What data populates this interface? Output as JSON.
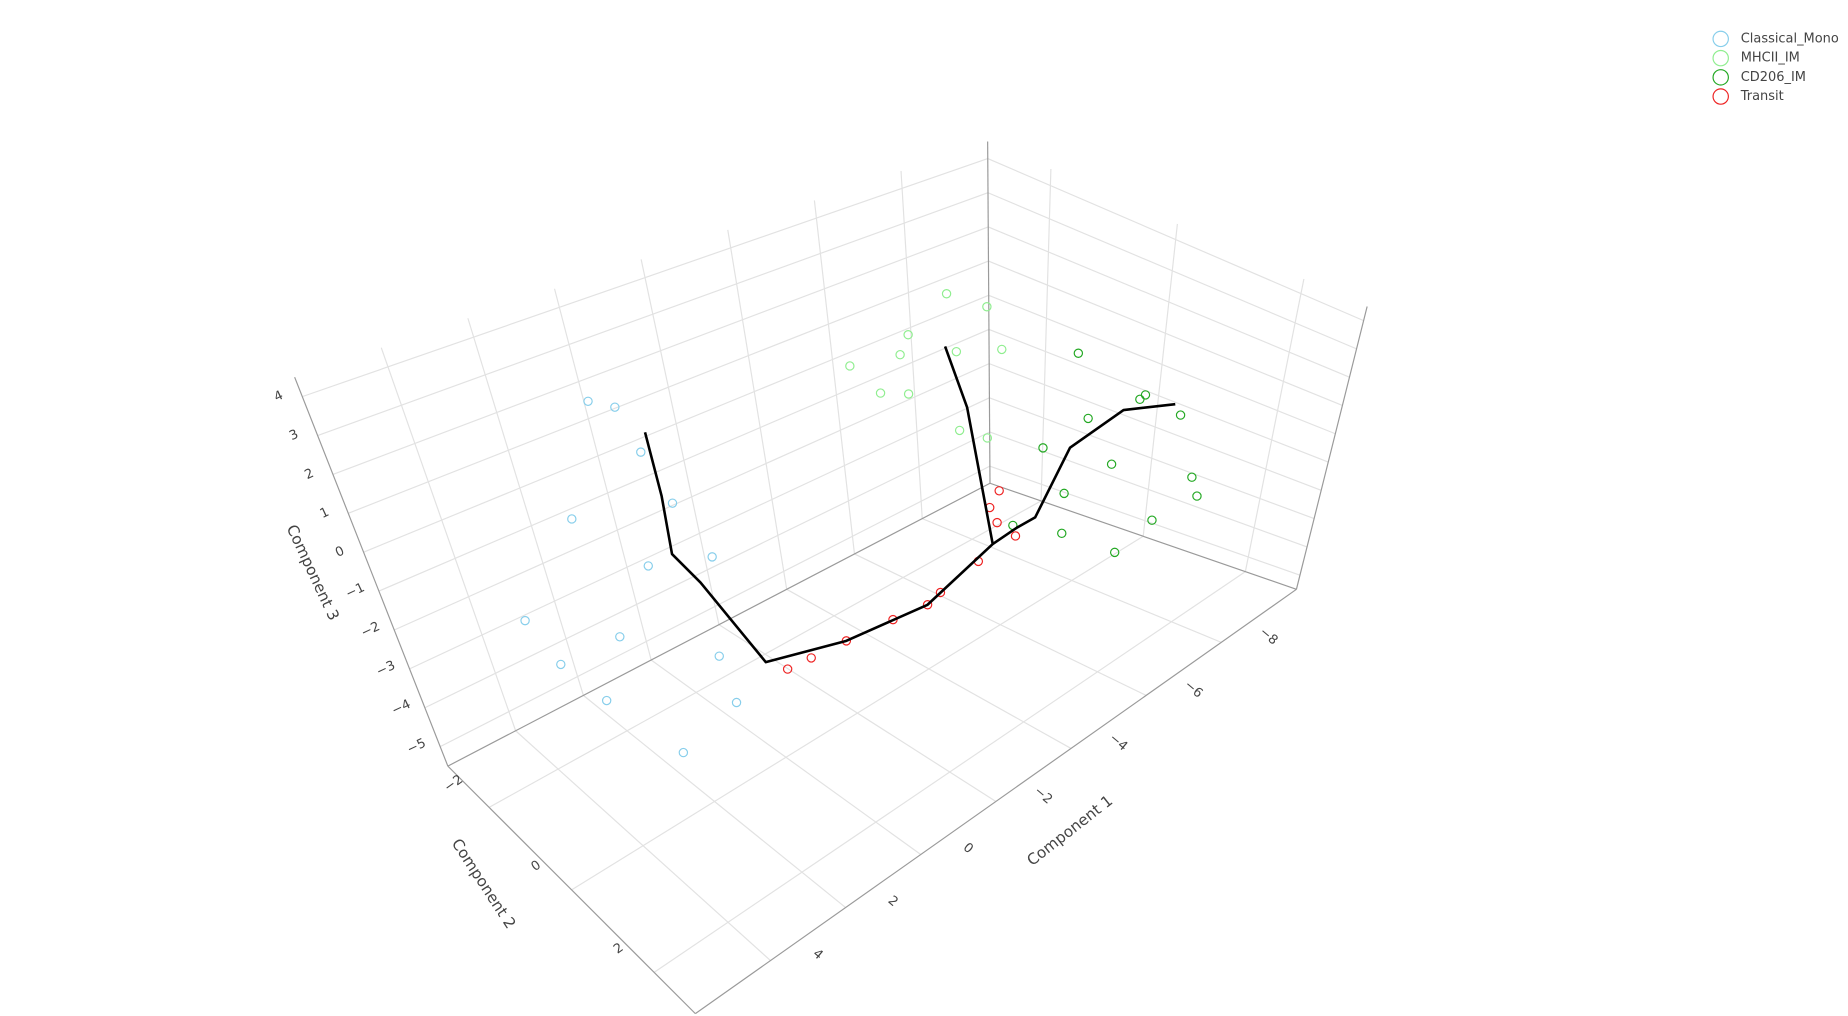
{
  "chart_data": {
    "type": "scatter3d",
    "xlabel": "Component 1",
    "ylabel": "Component 2",
    "zlabel": "Component 3",
    "xlim": [
      -10,
      6
    ],
    "ylim": [
      -3,
      3
    ],
    "zlim": [
      -5.5,
      4.5
    ],
    "xticks": [
      {
        "value": -8,
        "label": "−8"
      },
      {
        "value": -6,
        "label": "−6"
      },
      {
        "value": -4,
        "label": "−4"
      },
      {
        "value": -2,
        "label": "−2"
      },
      0,
      2,
      4
    ],
    "yticks": [
      {
        "value": -2,
        "label": "−2"
      },
      0,
      2
    ],
    "zticks": [
      {
        "value": -5,
        "label": "−5"
      },
      {
        "value": -4,
        "label": "−4"
      },
      {
        "value": -3,
        "label": "−3"
      },
      {
        "value": -2,
        "label": "−2"
      },
      {
        "value": -1,
        "label": "−1"
      },
      0,
      1,
      2,
      3,
      4
    ],
    "grid": true,
    "legend": "top-right",
    "series": [
      {
        "name": "Classical_Mono",
        "color": "#87ceeb",
        "mode": "markers",
        "x": [
          2.09,
          1.34,
          0.94,
          2.74,
          4.2,
          4.56,
          0.63,
          0.11,
          1.7,
          3.09,
          1.57,
          0.16,
          2.5,
          1.2
        ],
        "y": [
          -0.9,
          -1.1,
          -0.7,
          -1.2,
          -0.8,
          -1.0,
          -0.6,
          -0.9,
          -0.9,
          -1.1,
          -0.9,
          -0.8,
          -1.0,
          -0.9
        ],
        "z": [
          4.36,
          3.68,
          1.29,
          1.24,
          -1.48,
          -0.37,
          -2.92,
          -4.74,
          -5.21,
          -3.28,
          -0.28,
          -0.65,
          -1.8,
          2.6
        ]
      },
      {
        "name": "MHCII_IM",
        "color": "#90ee90",
        "mode": "markers",
        "x": [
          -3.53,
          -4.72,
          -5.9,
          -6.68,
          -7.08,
          -5.04,
          -6.02,
          -4.0,
          -6.0,
          -6.79,
          -4.64
        ],
        "y": [
          -0.74,
          -0.6,
          -0.8,
          -0.7,
          -0.74,
          -0.9,
          -0.74,
          -0.6,
          -0.74,
          -0.8,
          -0.7
        ],
        "z": [
          2.89,
          3.33,
          3.77,
          3.08,
          1.56,
          1.18,
          -0.28,
          2.0,
          2.06,
          -0.98,
          2.7
        ]
      },
      {
        "name": "CD206_IM",
        "color": "#22a822",
        "mode": "markers",
        "x": [
          -5.91,
          -6.17,
          -6.91,
          -7.24,
          -6.56,
          -5.91,
          -4.27,
          -3.87,
          -5.02,
          -5.42,
          -7.44,
          -4.4,
          -5.9,
          -3.35
        ],
        "y": [
          1.36,
          2.3,
          2.4,
          2.5,
          2.36,
          2.2,
          2.4,
          2.3,
          2.2,
          2.36,
          2.5,
          2.3,
          2.4,
          2.2
        ],
        "z": [
          3.93,
          3.35,
          2.33,
          0.18,
          -0.84,
          -1.53,
          1.57,
          3.1,
          3.22,
          1.7,
          -0.58,
          0.18,
          3.47,
          1.0
        ]
      },
      {
        "name": "Transit",
        "color": "#ee2222",
        "mode": "markers",
        "x": [
          0.83,
          -0.64,
          -1.81,
          -2.68,
          -3.01,
          -3.97,
          -4.26,
          -4.44,
          -4.9,
          0.24,
          -4.49
        ],
        "y": [
          1.1,
          1.1,
          1.1,
          1.1,
          1.1,
          1.1,
          1.1,
          1.1,
          1.1,
          1.1,
          1.1
        ],
        "z": [
          -1.58,
          -1.67,
          -1.78,
          -1.89,
          -1.74,
          -1.43,
          -0.01,
          -0.57,
          -1.26,
          -1.62,
          0.35
        ]
      },
      {
        "color": "#000000",
        "mode": "lines",
        "x": [
          1.02,
          0.94,
          0.97,
          0.44,
          1.32,
          -0.64,
          -2.68,
          -4.33,
          -4.94,
          -3.66,
          -4.41,
          -5.6,
          -6.81,
          null,
          -4.33,
          -6.22,
          -5.74
        ],
        "y": [
          -0.9,
          -0.9,
          -0.9,
          -0.9,
          1.1,
          1.1,
          1.1,
          1.1,
          1.1,
          2.36,
          2.36,
          2.36,
          2.36,
          null,
          1.1,
          -0.74,
          -0.74
        ],
        "z": [
          3.05,
          1.29,
          -0.26,
          -1.3,
          -1.11,
          -1.67,
          -1.89,
          -1.14,
          -1.03,
          1.19,
          2.84,
          3.28,
          2.71,
          null,
          -1.14,
          0.29,
          2.35
        ]
      }
    ]
  }
}
